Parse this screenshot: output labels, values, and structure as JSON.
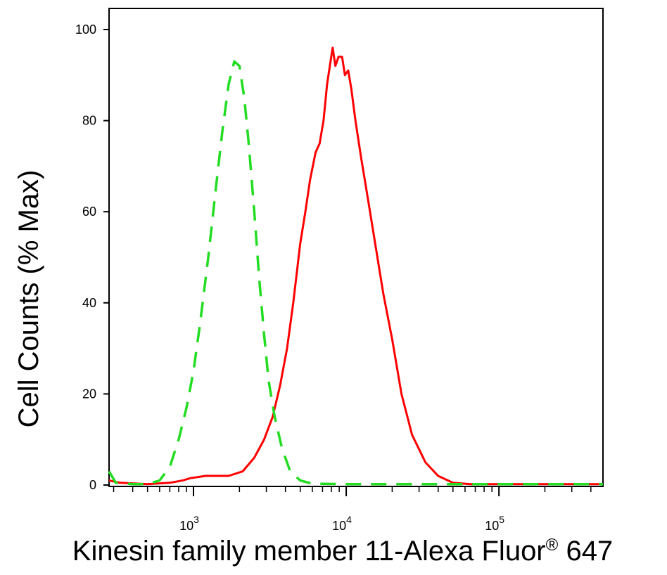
{
  "chart_data": {
    "type": "line",
    "title": "",
    "xlabel": "Kinesin family member 11-Alexa Fluor® 647",
    "ylabel": "Cell Counts (% Max)",
    "x_scale": "log",
    "xlim": [
      280,
      480000
    ],
    "ylim": [
      0,
      105
    ],
    "y_ticks": [
      0,
      20,
      40,
      60,
      80,
      100
    ],
    "x_major_ticks": [
      {
        "value": 1000,
        "base": "10",
        "exp": "3"
      },
      {
        "value": 10000,
        "base": "10",
        "exp": "4"
      },
      {
        "value": 100000,
        "base": "10",
        "exp": "5"
      }
    ],
    "grid": false,
    "series": [
      {
        "color": "#ff0000",
        "dash": "solid",
        "points": [
          [
            280,
            1
          ],
          [
            330,
            0.5
          ],
          [
            500,
            0.2
          ],
          [
            700,
            0.5
          ],
          [
            850,
            1
          ],
          [
            950,
            1.5
          ],
          [
            1200,
            2
          ],
          [
            1700,
            2
          ],
          [
            2100,
            3
          ],
          [
            2500,
            6
          ],
          [
            2900,
            10
          ],
          [
            3300,
            15
          ],
          [
            3700,
            22
          ],
          [
            4100,
            30
          ],
          [
            4500,
            40
          ],
          [
            5000,
            53
          ],
          [
            5400,
            60
          ],
          [
            5800,
            67
          ],
          [
            6300,
            73
          ],
          [
            6700,
            75
          ],
          [
            7100,
            80
          ],
          [
            7500,
            88
          ],
          [
            7900,
            93
          ],
          [
            8150,
            96
          ],
          [
            8500,
            92
          ],
          [
            8900,
            94
          ],
          [
            9400,
            94
          ],
          [
            9800,
            90
          ],
          [
            10300,
            91
          ],
          [
            10800,
            87
          ],
          [
            11500,
            80
          ],
          [
            12500,
            72
          ],
          [
            14000,
            62
          ],
          [
            16000,
            50
          ],
          [
            17500,
            42
          ],
          [
            20000,
            32
          ],
          [
            23000,
            20
          ],
          [
            27000,
            11
          ],
          [
            33000,
            5
          ],
          [
            40000,
            2
          ],
          [
            50000,
            0.5
          ],
          [
            65000,
            0.2
          ],
          [
            150000,
            0.2
          ],
          [
            480000,
            0.2
          ]
        ]
      },
      {
        "color": "#22dd22",
        "dash": "dashed",
        "points": [
          [
            280,
            3
          ],
          [
            310,
            0.5
          ],
          [
            400,
            0.2
          ],
          [
            500,
            0.2
          ],
          [
            600,
            1
          ],
          [
            700,
            4
          ],
          [
            800,
            10
          ],
          [
            900,
            17
          ],
          [
            1000,
            25
          ],
          [
            1100,
            35
          ],
          [
            1250,
            50
          ],
          [
            1400,
            65
          ],
          [
            1550,
            78
          ],
          [
            1700,
            88
          ],
          [
            1850,
            93
          ],
          [
            2000,
            92
          ],
          [
            2150,
            85
          ],
          [
            2300,
            75
          ],
          [
            2500,
            60
          ],
          [
            2700,
            45
          ],
          [
            2900,
            33
          ],
          [
            3100,
            23
          ],
          [
            3400,
            15
          ],
          [
            3800,
            8
          ],
          [
            4300,
            3
          ],
          [
            5000,
            1
          ],
          [
            6000,
            0.3
          ],
          [
            10000,
            0.2
          ],
          [
            480000,
            0.2
          ]
        ]
      }
    ]
  }
}
